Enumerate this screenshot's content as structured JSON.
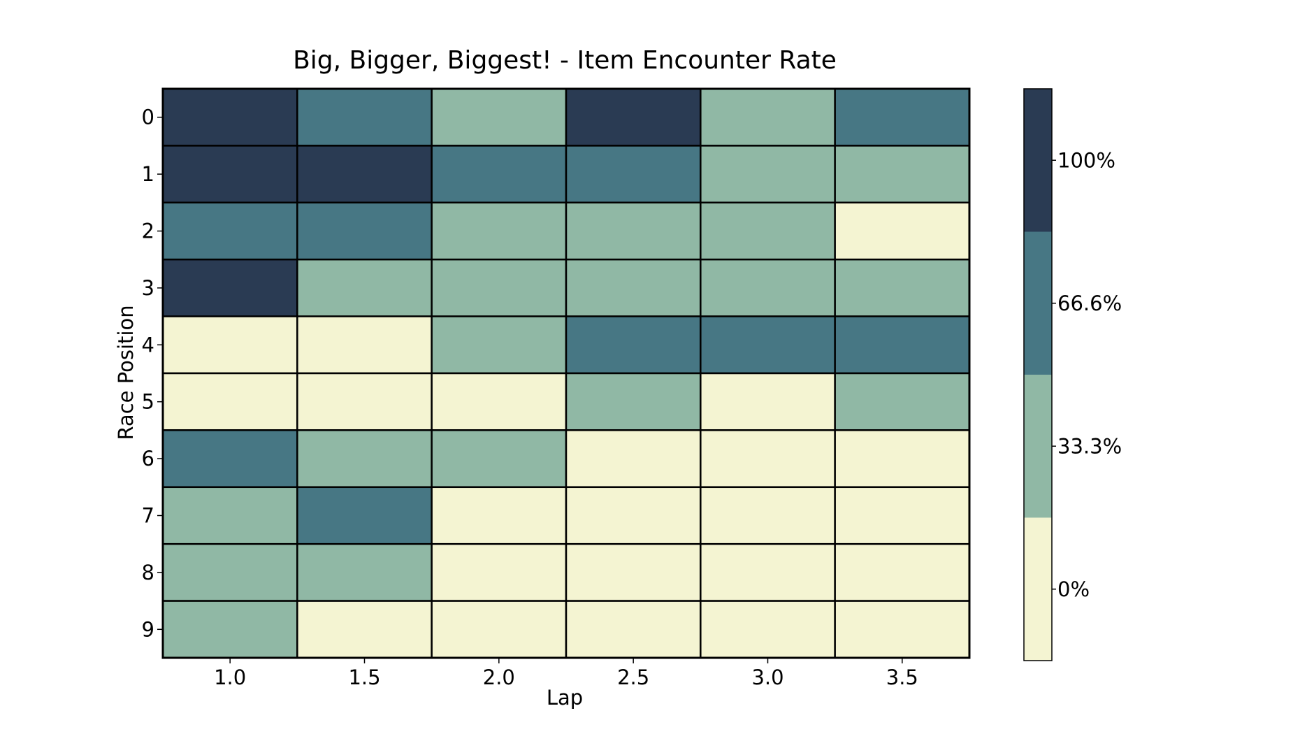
{
  "chart_data": {
    "type": "heatmap",
    "title": "Big, Bigger, Biggest! - Item Encounter Rate",
    "xlabel": "Lap",
    "ylabel": "Race Position",
    "x_ticks": [
      "1.0",
      "1.5",
      "2.0",
      "2.5",
      "3.0",
      "3.5"
    ],
    "y_ticks": [
      "0",
      "1",
      "2",
      "3",
      "4",
      "5",
      "6",
      "7",
      "8",
      "9"
    ],
    "values": [
      [
        100,
        66.6,
        33.3,
        100,
        33.3,
        66.6
      ],
      [
        100,
        100,
        66.6,
        66.6,
        33.3,
        33.3
      ],
      [
        66.6,
        66.6,
        33.3,
        33.3,
        33.3,
        0
      ],
      [
        100,
        33.3,
        33.3,
        33.3,
        33.3,
        33.3
      ],
      [
        0,
        0,
        33.3,
        66.6,
        66.6,
        66.6
      ],
      [
        0,
        0,
        0,
        33.3,
        0,
        33.3
      ],
      [
        66.6,
        33.3,
        33.3,
        0,
        0,
        0
      ],
      [
        33.3,
        66.6,
        0,
        0,
        0,
        0
      ],
      [
        33.3,
        33.3,
        0,
        0,
        0,
        0
      ],
      [
        33.3,
        0,
        0,
        0,
        0,
        0
      ]
    ],
    "unit": "%",
    "colorbar": {
      "ticks": [
        "0%",
        "33.3%",
        "66.6%",
        "100%"
      ],
      "levels": [
        0,
        33.3,
        66.6,
        100
      ],
      "colors": [
        "#f4f4d2",
        "#90b8a5",
        "#477784",
        "#2a3b53"
      ]
    },
    "grid": true,
    "cell_border_color": "#000000"
  }
}
